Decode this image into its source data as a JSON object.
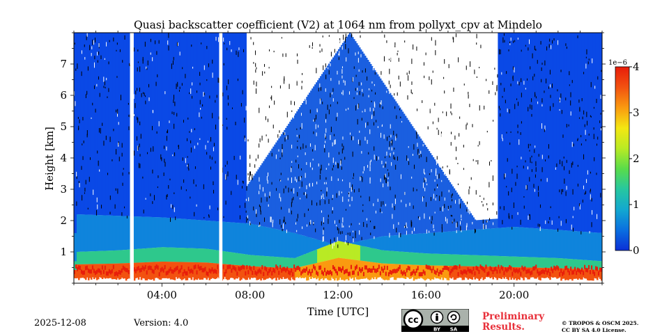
{
  "chart_data": {
    "type": "heatmap",
    "title": "Quasi backscatter coefficient (V2) at 1064 nm from pollyxt_cpv at Mindelo",
    "xlabel": "Time [UTC]",
    "ylabel": "Height [km]",
    "xlim_hours": [
      0,
      24
    ],
    "ylim_km": [
      0,
      8
    ],
    "x_ticks": [
      {
        "hour": 4,
        "label": "04:00"
      },
      {
        "hour": 8,
        "label": "08:00"
      },
      {
        "hour": 12,
        "label": "12:00"
      },
      {
        "hour": 16,
        "label": "16:00"
      },
      {
        "hour": 20,
        "label": "20:00"
      }
    ],
    "y_ticks": [
      {
        "value": 1,
        "label": "1"
      },
      {
        "value": 2,
        "label": "2"
      },
      {
        "value": 3,
        "label": "3"
      },
      {
        "value": 4,
        "label": "4"
      },
      {
        "value": 5,
        "label": "5"
      },
      {
        "value": 6,
        "label": "6"
      },
      {
        "value": 7,
        "label": "7"
      }
    ],
    "colorbar": {
      "range": [
        0,
        4
      ],
      "scale_label": "1e−6",
      "ticks": [
        {
          "value": 0,
          "label": "0"
        },
        {
          "value": 1,
          "label": "1"
        },
        {
          "value": 2,
          "label": "2"
        },
        {
          "value": 3,
          "label": "3"
        },
        {
          "value": 4,
          "label": "4"
        }
      ],
      "colors": [
        "#0b2fd6",
        "#0a6fe0",
        "#13a8d0",
        "#26c7a0",
        "#59dc4a",
        "#b9ea24",
        "#f4e712",
        "#fa9a10",
        "#f25210",
        "#e81c0a"
      ]
    },
    "no_data_gaps_hours": [
      [
        2.55,
        2.72
      ],
      [
        6.6,
        6.75
      ]
    ],
    "daytime_noise_window_hours": [
      7.8,
      19.2
    ],
    "boundary_layer_top_km": [
      [
        0.1,
        2.2
      ],
      [
        2,
        2.15
      ],
      [
        4,
        2.1
      ],
      [
        6,
        2.0
      ],
      [
        8,
        1.9
      ],
      [
        10,
        1.6
      ],
      [
        12,
        1.2
      ],
      [
        14,
        1.5
      ],
      [
        16,
        1.6
      ],
      [
        18,
        1.7
      ],
      [
        20,
        1.8
      ],
      [
        22,
        1.7
      ],
      [
        24,
        1.6
      ]
    ],
    "aerosol_layer_top_km": [
      [
        0.1,
        1.0
      ],
      [
        2,
        1.05
      ],
      [
        4,
        1.15
      ],
      [
        6,
        1.1
      ],
      [
        8,
        0.9
      ],
      [
        10,
        0.8
      ],
      [
        12,
        1.35
      ],
      [
        14,
        1.05
      ],
      [
        16,
        0.95
      ],
      [
        18,
        0.9
      ],
      [
        20,
        0.85
      ],
      [
        22,
        0.8
      ],
      [
        24,
        0.7
      ]
    ]
  },
  "footer": {
    "date": "2025-12-08",
    "version": "Version: 4.0",
    "preliminary_line1": "Preliminary",
    "preliminary_line2": "Results.",
    "copyright_line1": "© TROPOS & OSCM 2025.",
    "copyright_line2": "CC BY SA 4.0 License.",
    "cc_text": "cc",
    "cc_by": "BY",
    "cc_sa": "SA"
  }
}
